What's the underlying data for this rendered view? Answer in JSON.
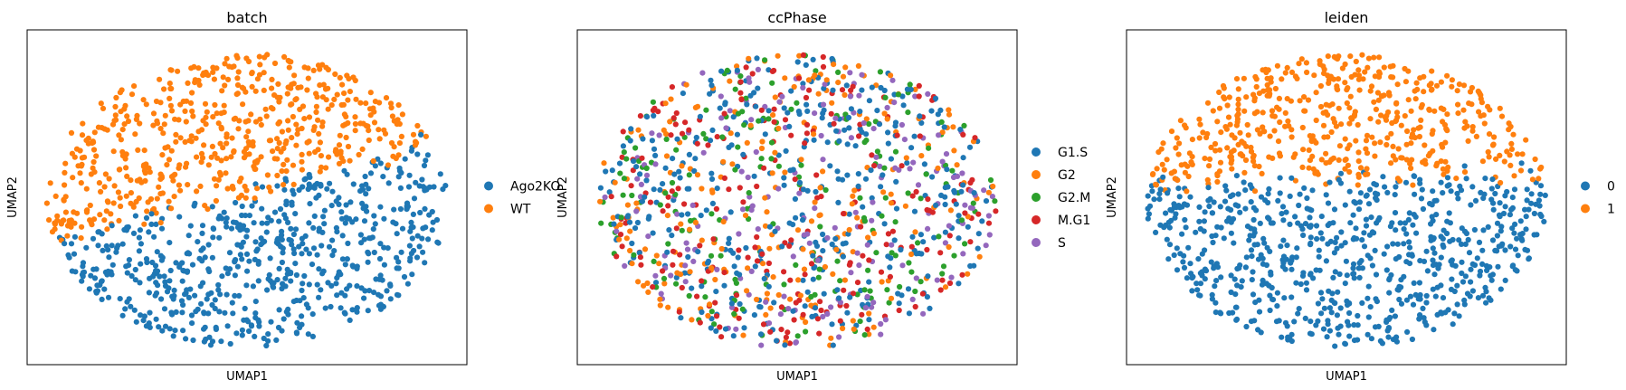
{
  "chart_data": [
    {
      "type": "scatter",
      "title": "batch",
      "xlabel": "UMAP1",
      "ylabel": "UMAP2",
      "grid": false,
      "ticks": false,
      "legend": {
        "position": "right-outside",
        "entries": [
          {
            "name": "Ago2KO",
            "color": "#1f77b4"
          },
          {
            "name": "WT",
            "color": "#ff7f0e"
          }
        ]
      },
      "series": [
        {
          "name": "Ago2KO",
          "color": "#1f77b4",
          "approx_points": 650
        },
        {
          "name": "WT",
          "color": "#ff7f0e",
          "approx_points": 550
        }
      ]
    },
    {
      "type": "scatter",
      "title": "ccPhase",
      "xlabel": "UMAP1",
      "ylabel": "UMAP2",
      "grid": false,
      "ticks": false,
      "legend": {
        "position": "right-outside",
        "entries": [
          {
            "name": "G1.S",
            "color": "#1f77b4"
          },
          {
            "name": "G2",
            "color": "#ff7f0e"
          },
          {
            "name": "G2.M",
            "color": "#2ca02c"
          },
          {
            "name": "M.G1",
            "color": "#d62728"
          },
          {
            "name": "S",
            "color": "#9467bd"
          }
        ]
      },
      "series": [
        {
          "name": "G1.S",
          "color": "#1f77b4",
          "approx_points": 380
        },
        {
          "name": "G2",
          "color": "#ff7f0e",
          "approx_points": 230
        },
        {
          "name": "G2.M",
          "color": "#2ca02c",
          "approx_points": 190
        },
        {
          "name": "M.G1",
          "color": "#d62728",
          "approx_points": 220
        },
        {
          "name": "S",
          "color": "#9467bd",
          "approx_points": 180
        }
      ]
    },
    {
      "type": "scatter",
      "title": "leiden",
      "xlabel": "UMAP1",
      "ylabel": "UMAP2",
      "grid": false,
      "ticks": false,
      "legend": {
        "position": "right-outside",
        "entries": [
          {
            "name": "0",
            "color": "#1f77b4"
          },
          {
            "name": "1",
            "color": "#ff7f0e"
          }
        ]
      },
      "series": [
        {
          "name": "0",
          "color": "#1f77b4",
          "approx_points": 700
        },
        {
          "name": "1",
          "color": "#ff7f0e",
          "approx_points": 500
        }
      ]
    }
  ]
}
